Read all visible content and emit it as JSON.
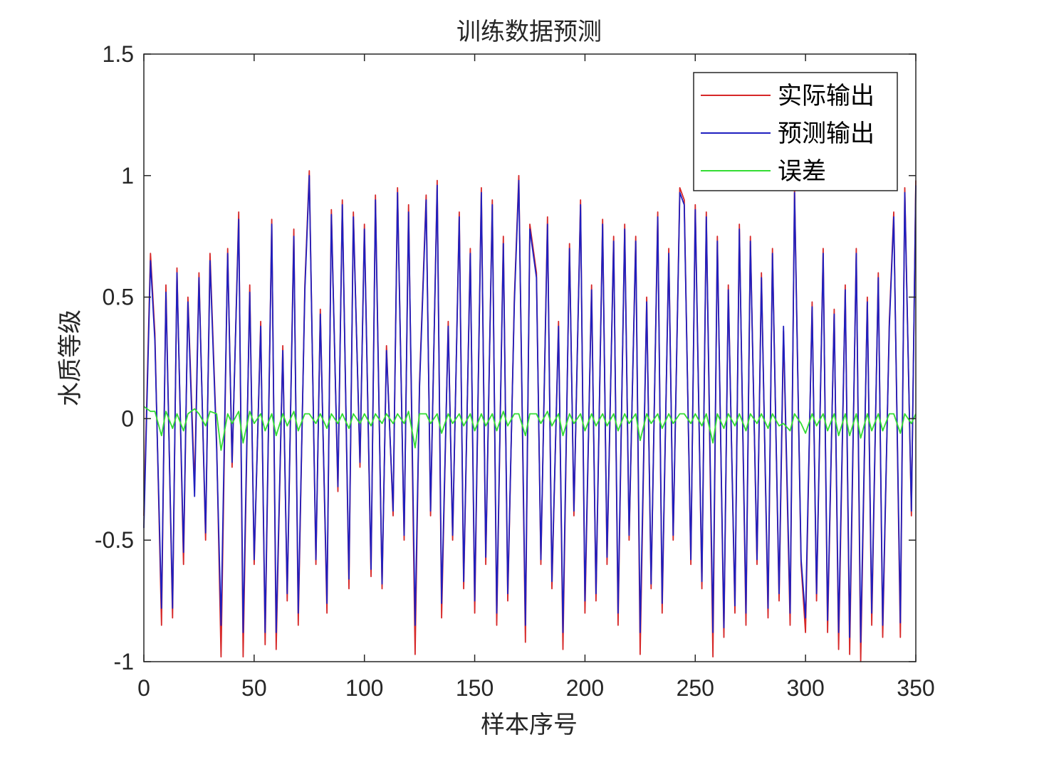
{
  "chart_data": {
    "type": "line",
    "title": "训练数据预测",
    "xlabel": "样本序号",
    "ylabel": "水质等级",
    "xlim": [
      0,
      350
    ],
    "ylim": [
      -1,
      1.5
    ],
    "xticks": [
      0,
      50,
      100,
      150,
      200,
      250,
      300,
      350
    ],
    "xtick_labels": [
      "0",
      "50",
      "100",
      "150",
      "200",
      "250",
      "300",
      "350"
    ],
    "yticks": [
      -1,
      -0.5,
      0,
      0.5,
      1,
      1.5
    ],
    "ytick_labels": [
      "-1",
      "-0.5",
      "0",
      "0.5",
      "1",
      "1.5"
    ],
    "grid": false,
    "legend_position": "top-right",
    "x": [
      0,
      3,
      5,
      8,
      10,
      13,
      15,
      18,
      20,
      23,
      25,
      28,
      30,
      33,
      35,
      38,
      40,
      43,
      45,
      48,
      50,
      53,
      55,
      58,
      60,
      63,
      65,
      68,
      70,
      73,
      75,
      78,
      80,
      83,
      85,
      88,
      90,
      93,
      95,
      98,
      100,
      103,
      105,
      108,
      110,
      113,
      115,
      118,
      120,
      123,
      125,
      128,
      130,
      133,
      135,
      138,
      140,
      143,
      145,
      148,
      150,
      153,
      155,
      158,
      160,
      163,
      165,
      168,
      170,
      173,
      175,
      178,
      180,
      183,
      185,
      188,
      190,
      193,
      195,
      198,
      200,
      203,
      205,
      208,
      210,
      213,
      215,
      218,
      220,
      223,
      225,
      228,
      230,
      233,
      235,
      238,
      240,
      243,
      245,
      248,
      250,
      253,
      255,
      258,
      260,
      263,
      265,
      268,
      270,
      273,
      275,
      278,
      280,
      283,
      285,
      288,
      290,
      293,
      295,
      298,
      300,
      303,
      305,
      308,
      310,
      313,
      315,
      318,
      320,
      323,
      325,
      328,
      330,
      333,
      335,
      338,
      340,
      343,
      345,
      348,
      350
    ],
    "series": [
      {
        "name": "实际输出",
        "color": "#d62728",
        "values": [
          -0.4,
          0.68,
          0.35,
          -0.85,
          0.55,
          -0.82,
          0.62,
          -0.6,
          0.5,
          -0.28,
          0.6,
          -0.5,
          0.68,
          -0.1,
          -0.98,
          0.7,
          -0.2,
          0.85,
          -0.98,
          0.55,
          -0.6,
          0.4,
          -0.93,
          0.82,
          -0.95,
          0.3,
          -0.75,
          0.78,
          -0.85,
          0.55,
          1.02,
          -0.6,
          0.45,
          -0.8,
          0.86,
          -0.3,
          0.9,
          -0.7,
          0.85,
          -0.2,
          0.8,
          -0.65,
          0.92,
          -0.7,
          0.3,
          -0.4,
          0.95,
          -0.5,
          0.88,
          -0.97,
          0.15,
          0.92,
          -0.4,
          0.98,
          -0.82,
          0.4,
          -0.5,
          0.85,
          -0.7,
          0.7,
          -0.8,
          0.95,
          -0.6,
          0.9,
          -0.85,
          0.75,
          -0.75,
          0.5,
          1.0,
          -0.92,
          0.8,
          0.6,
          -0.6,
          0.83,
          -0.7,
          0.4,
          -0.95,
          0.72,
          -0.4,
          0.9,
          -0.8,
          0.55,
          -0.75,
          0.82,
          -0.6,
          0.75,
          -0.85,
          0.8,
          -0.5,
          0.75,
          -0.97,
          0.5,
          -0.7,
          0.85,
          -0.8,
          0.7,
          -0.5,
          0.95,
          0.9,
          -0.6,
          0.88,
          -0.7,
          0.85,
          -0.98,
          0.75,
          -0.9,
          0.55,
          -0.8,
          0.8,
          -0.85,
          0.75,
          -0.6,
          0.6,
          -0.82,
          0.7,
          -0.75,
          0.36,
          -0.85,
          0.95,
          -0.6,
          -0.88,
          0.48,
          -0.75,
          0.7,
          -0.88,
          0.45,
          -0.95,
          0.55,
          -0.97,
          0.7,
          -1.0,
          0.5,
          -0.85,
          0.6,
          -0.9,
          0.4,
          0.85,
          -0.9,
          0.95,
          -0.4,
          0.98
        ]
      },
      {
        "name": "预测输出",
        "color": "#1f1fbf",
        "values": [
          -0.45,
          0.65,
          0.32,
          -0.78,
          0.52,
          -0.78,
          0.6,
          -0.55,
          0.48,
          -0.32,
          0.58,
          -0.47,
          0.65,
          -0.12,
          -0.85,
          0.68,
          -0.18,
          0.82,
          -0.88,
          0.52,
          -0.58,
          0.38,
          -0.88,
          0.8,
          -0.88,
          0.28,
          -0.72,
          0.75,
          -0.8,
          0.53,
          1.0,
          -0.58,
          0.43,
          -0.76,
          0.84,
          -0.28,
          0.88,
          -0.66,
          0.83,
          -0.18,
          0.78,
          -0.62,
          0.9,
          -0.68,
          0.28,
          -0.38,
          0.93,
          -0.48,
          0.85,
          -0.85,
          0.13,
          0.9,
          -0.38,
          0.96,
          -0.76,
          0.38,
          -0.48,
          0.83,
          -0.67,
          0.68,
          -0.75,
          0.93,
          -0.57,
          0.88,
          -0.8,
          0.72,
          -0.72,
          0.48,
          0.98,
          -0.85,
          0.78,
          0.58,
          -0.58,
          0.8,
          -0.67,
          0.38,
          -0.88,
          0.7,
          -0.38,
          0.88,
          -0.75,
          0.53,
          -0.72,
          0.8,
          -0.57,
          0.73,
          -0.8,
          0.78,
          -0.48,
          0.73,
          -0.88,
          0.48,
          -0.68,
          0.83,
          -0.76,
          0.68,
          -0.48,
          0.93,
          0.88,
          -0.58,
          0.86,
          -0.67,
          0.83,
          -0.88,
          0.73,
          -0.86,
          0.53,
          -0.77,
          0.78,
          -0.8,
          0.73,
          -0.58,
          0.58,
          -0.78,
          0.68,
          -0.72,
          0.38,
          -0.8,
          0.93,
          -0.58,
          -0.82,
          0.46,
          -0.72,
          0.68,
          -0.83,
          0.43,
          -0.88,
          0.53,
          -0.9,
          0.68,
          -0.92,
          0.48,
          -0.8,
          0.58,
          -0.85,
          0.38,
          0.83,
          -0.84,
          0.93,
          -0.38,
          0.96
        ]
      },
      {
        "name": "误差",
        "color": "#33dd33",
        "values": [
          0.05,
          0.03,
          0.03,
          -0.07,
          0.03,
          -0.04,
          0.02,
          -0.05,
          0.02,
          0.04,
          0.02,
          -0.03,
          0.03,
          0.02,
          -0.13,
          0.02,
          -0.02,
          0.03,
          -0.1,
          0.03,
          -0.02,
          0.02,
          -0.05,
          0.02,
          -0.07,
          0.02,
          -0.03,
          0.03,
          -0.05,
          0.02,
          0.02,
          -0.02,
          0.02,
          -0.04,
          0.02,
          -0.02,
          0.02,
          -0.04,
          0.02,
          -0.02,
          0.02,
          -0.03,
          0.02,
          -0.02,
          0.02,
          -0.02,
          0.02,
          -0.02,
          0.03,
          -0.12,
          0.02,
          0.02,
          -0.02,
          0.02,
          -0.06,
          0.02,
          -0.02,
          0.02,
          -0.03,
          0.02,
          -0.05,
          0.02,
          -0.03,
          0.02,
          -0.05,
          0.03,
          -0.03,
          0.02,
          0.02,
          -0.07,
          0.02,
          0.02,
          -0.02,
          0.03,
          -0.03,
          0.02,
          -0.07,
          0.02,
          -0.02,
          0.02,
          -0.05,
          0.02,
          -0.03,
          0.02,
          -0.03,
          0.02,
          -0.05,
          0.02,
          -0.02,
          0.02,
          -0.09,
          0.02,
          -0.02,
          0.02,
          -0.04,
          0.02,
          -0.02,
          0.02,
          0.02,
          -0.02,
          0.02,
          -0.03,
          0.02,
          -0.1,
          0.02,
          -0.04,
          0.02,
          -0.03,
          0.02,
          -0.05,
          0.02,
          -0.02,
          0.02,
          -0.04,
          0.02,
          -0.03,
          -0.02,
          -0.05,
          0.02,
          -0.02,
          -0.06,
          0.02,
          -0.03,
          0.02,
          -0.05,
          0.02,
          -0.07,
          0.02,
          -0.07,
          0.02,
          -0.08,
          0.02,
          -0.05,
          0.02,
          -0.05,
          0.02,
          0.02,
          -0.06,
          0.02,
          -0.02,
          0.02
        ]
      }
    ]
  }
}
